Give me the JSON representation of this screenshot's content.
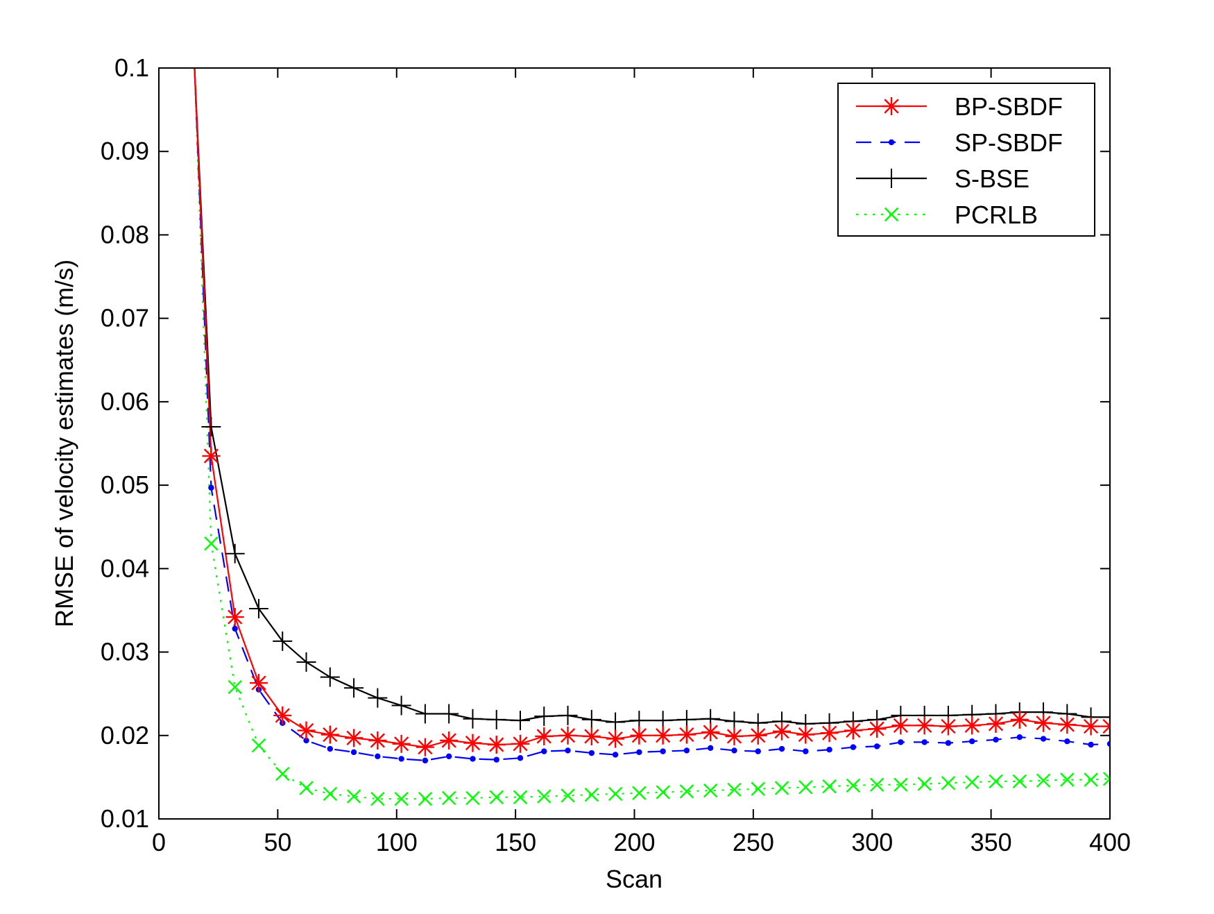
{
  "chart_data": {
    "type": "line",
    "title": "",
    "xlabel": "Scan",
    "ylabel": "RMSE of velocity estimates (m/s)",
    "xlim": [
      0,
      400
    ],
    "ylim": [
      0.01,
      0.1
    ],
    "xticks": [
      0,
      50,
      100,
      150,
      200,
      250,
      300,
      350,
      400
    ],
    "xtick_labels": [
      "0",
      "50",
      "100",
      "150",
      "200",
      "250",
      "300",
      "350",
      "400"
    ],
    "yticks": [
      0.01,
      0.02,
      0.03,
      0.04,
      0.05,
      0.06,
      0.07,
      0.08,
      0.09,
      0.1
    ],
    "ytick_labels": [
      "0.01",
      "0.02",
      "0.03",
      "0.04",
      "0.05",
      "0.06",
      "0.07",
      "0.08",
      "0.09",
      "0.1"
    ],
    "grid": false,
    "legend_position": "top-right",
    "x": [
      15,
      22,
      32,
      42,
      52,
      62,
      72,
      82,
      92,
      102,
      112,
      122,
      132,
      142,
      152,
      162,
      172,
      182,
      192,
      202,
      212,
      222,
      232,
      242,
      252,
      262,
      272,
      282,
      292,
      302,
      312,
      322,
      332,
      342,
      352,
      362,
      372,
      382,
      392,
      400
    ],
    "series": [
      {
        "name": "BP-SBDF",
        "color": "#ff0000",
        "line_style": "solid",
        "marker": "asterisk",
        "values": [
          0.1,
          0.0535,
          0.0342,
          0.0263,
          0.0224,
          0.0206,
          0.0201,
          0.0197,
          0.0194,
          0.019,
          0.0186,
          0.0194,
          0.0191,
          0.0189,
          0.019,
          0.0199,
          0.02,
          0.0199,
          0.0196,
          0.02,
          0.02,
          0.0201,
          0.0204,
          0.0199,
          0.02,
          0.0205,
          0.0201,
          0.0203,
          0.0206,
          0.0208,
          0.0212,
          0.0212,
          0.0211,
          0.0212,
          0.0214,
          0.0219,
          0.0215,
          0.0213,
          0.0211,
          0.0211
        ]
      },
      {
        "name": "SP-SBDF",
        "color": "#0000ff",
        "line_style": "dashed",
        "marker": "dot",
        "values": [
          0.1,
          0.0497,
          0.0328,
          0.0255,
          0.0215,
          0.0194,
          0.0184,
          0.018,
          0.0175,
          0.0172,
          0.017,
          0.0175,
          0.0172,
          0.0171,
          0.0173,
          0.0181,
          0.0182,
          0.0179,
          0.0177,
          0.018,
          0.0181,
          0.0182,
          0.0185,
          0.0182,
          0.0181,
          0.0184,
          0.0181,
          0.0183,
          0.0186,
          0.0187,
          0.0192,
          0.0192,
          0.0191,
          0.0193,
          0.0195,
          0.0198,
          0.0196,
          0.0193,
          0.0189,
          0.019
        ]
      },
      {
        "name": "S-BSE",
        "color": "#000000",
        "line_style": "solid",
        "marker": "plus",
        "values": [
          0.1,
          0.057,
          0.0418,
          0.0352,
          0.0313,
          0.0288,
          0.027,
          0.0257,
          0.0245,
          0.0236,
          0.0226,
          0.0226,
          0.022,
          0.0219,
          0.0218,
          0.0223,
          0.0224,
          0.0219,
          0.0216,
          0.0218,
          0.0218,
          0.0219,
          0.022,
          0.0217,
          0.0215,
          0.0217,
          0.0214,
          0.0215,
          0.0217,
          0.0219,
          0.0224,
          0.0224,
          0.0224,
          0.0225,
          0.0226,
          0.0228,
          0.0228,
          0.0226,
          0.0222,
          0.0222
        ]
      },
      {
        "name": "PCRLB",
        "color": "#00ff00",
        "line_style": "dotted",
        "marker": "x",
        "values": [
          0.1,
          0.043,
          0.0258,
          0.0188,
          0.0154,
          0.0137,
          0.013,
          0.0127,
          0.0124,
          0.0124,
          0.0124,
          0.0125,
          0.0125,
          0.0126,
          0.0126,
          0.0127,
          0.0128,
          0.0129,
          0.013,
          0.0131,
          0.0132,
          0.0133,
          0.0134,
          0.0135,
          0.0136,
          0.0137,
          0.0138,
          0.0139,
          0.014,
          0.0141,
          0.0141,
          0.0142,
          0.0143,
          0.0144,
          0.0145,
          0.0145,
          0.0146,
          0.0147,
          0.0147,
          0.0148
        ]
      }
    ]
  }
}
